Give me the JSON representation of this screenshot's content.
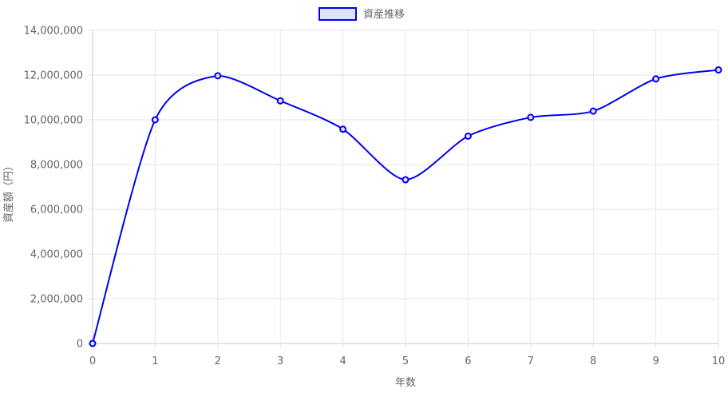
{
  "chart_data": {
    "type": "line",
    "x": [
      0,
      1,
      2,
      3,
      4,
      5,
      6,
      7,
      8,
      9,
      10
    ],
    "series": [
      {
        "name": "資産推移",
        "values": [
          0,
          10000000,
          11970000,
          10850000,
          9580000,
          7320000,
          9270000,
          10110000,
          10390000,
          11830000,
          12230000
        ],
        "color": "#0000ee",
        "fill": "#e0e0ff"
      }
    ],
    "xlabel": "年数",
    "ylabel": "資産額（円）",
    "xlim": [
      0,
      10
    ],
    "ylim": [
      0,
      14000000
    ],
    "x_ticks": [
      "0",
      "1",
      "2",
      "3",
      "4",
      "5",
      "6",
      "7",
      "8",
      "9",
      "10"
    ],
    "y_ticks": [
      "0",
      "2,000,000",
      "4,000,000",
      "6,000,000",
      "8,000,000",
      "10,000,000",
      "12,000,000",
      "14,000,000"
    ],
    "grid": true,
    "legend_position": "top-center"
  }
}
